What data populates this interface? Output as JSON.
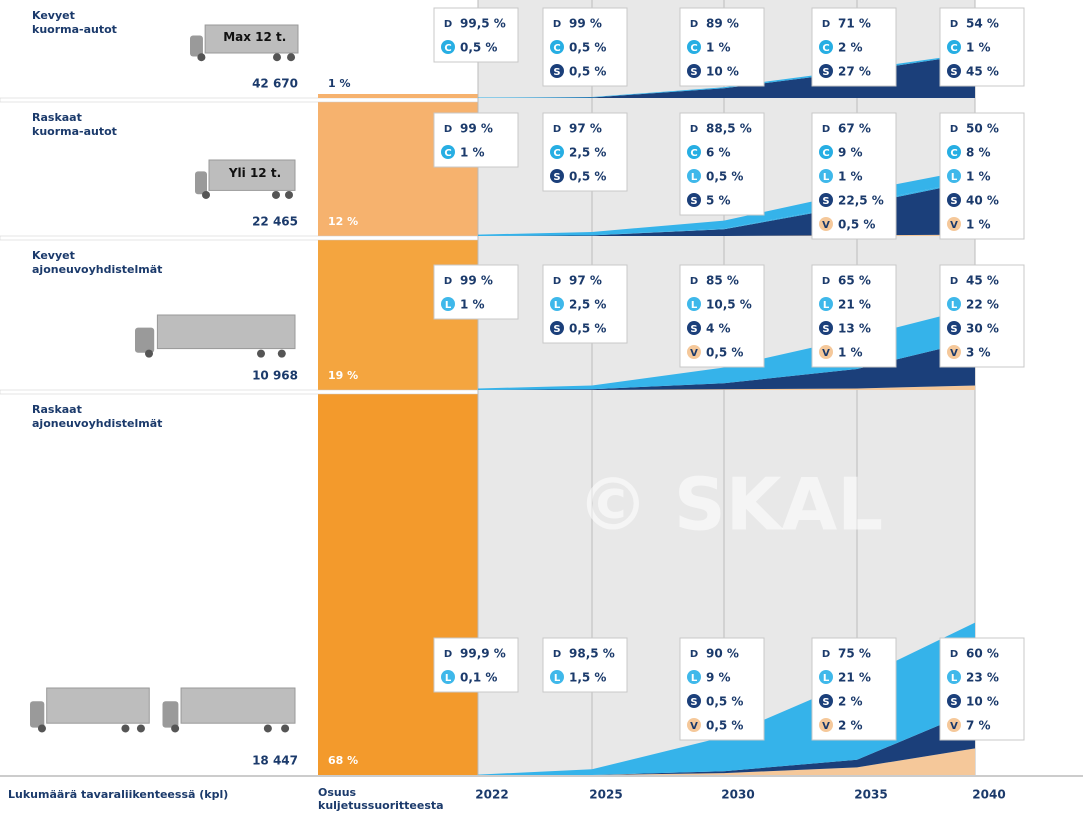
{
  "watermark": "© SKAL",
  "years": [
    "2022",
    "2025",
    "2030",
    "2035",
    "2040"
  ],
  "footer": {
    "count_label": "Lukumäärä tavaraliikenteessä (kpl)",
    "share_label": [
      "Osuus",
      "kuljetussuoritteesta"
    ]
  },
  "rows": [
    {
      "name": [
        "Kevyet",
        "kuorma-autot"
      ],
      "badge": "Max 12 t.",
      "count": "42 670",
      "share": "1 %",
      "boxes": [
        [
          {
            "fuel": "D",
            "value": "99,5 %"
          },
          {
            "fuel": "C",
            "value": "0,5 %"
          }
        ],
        [
          {
            "fuel": "D",
            "value": "99 %"
          },
          {
            "fuel": "C",
            "value": "0,5 %"
          },
          {
            "fuel": "S",
            "value": "0,5 %"
          }
        ],
        [
          {
            "fuel": "D",
            "value": "89 %"
          },
          {
            "fuel": "C",
            "value": "1 %"
          },
          {
            "fuel": "S",
            "value": "10 %"
          }
        ],
        [
          {
            "fuel": "D",
            "value": "71 %"
          },
          {
            "fuel": "C",
            "value": "2 %"
          },
          {
            "fuel": "S",
            "value": "27 %"
          }
        ],
        [
          {
            "fuel": "D",
            "value": "54 %"
          },
          {
            "fuel": "C",
            "value": "1 %"
          },
          {
            "fuel": "S",
            "value": "45 %"
          }
        ]
      ]
    },
    {
      "name": [
        "Raskaat",
        "kuorma-autot"
      ],
      "badge": "Yli 12 t.",
      "count": "22 465",
      "share": "12 %",
      "boxes": [
        [
          {
            "fuel": "D",
            "value": "99 %"
          },
          {
            "fuel": "C",
            "value": "1 %"
          }
        ],
        [
          {
            "fuel": "D",
            "value": "97 %"
          },
          {
            "fuel": "C",
            "value": "2,5 %"
          },
          {
            "fuel": "S",
            "value": "0,5 %"
          }
        ],
        [
          {
            "fuel": "D",
            "value": "88,5 %"
          },
          {
            "fuel": "C",
            "value": "6 %"
          },
          {
            "fuel": "L",
            "value": "0,5 %"
          },
          {
            "fuel": "S",
            "value": "5 %"
          }
        ],
        [
          {
            "fuel": "D",
            "value": "67 %"
          },
          {
            "fuel": "C",
            "value": "9 %"
          },
          {
            "fuel": "L",
            "value": "1 %"
          },
          {
            "fuel": "S",
            "value": "22,5 %"
          },
          {
            "fuel": "V",
            "value": "0,5 %"
          }
        ],
        [
          {
            "fuel": "D",
            "value": "50 %"
          },
          {
            "fuel": "C",
            "value": "8 %"
          },
          {
            "fuel": "L",
            "value": "1 %"
          },
          {
            "fuel": "S",
            "value": "40 %"
          },
          {
            "fuel": "V",
            "value": "1 %"
          }
        ]
      ]
    },
    {
      "name": [
        "Kevyet",
        "ajoneuvoyhdistelmät"
      ],
      "count": "10 968",
      "share": "19 %",
      "boxes": [
        [
          {
            "fuel": "D",
            "value": "99 %"
          },
          {
            "fuel": "L",
            "value": "1 %"
          }
        ],
        [
          {
            "fuel": "D",
            "value": "97 %"
          },
          {
            "fuel": "L",
            "value": "2,5 %"
          },
          {
            "fuel": "S",
            "value": "0,5 %"
          }
        ],
        [
          {
            "fuel": "D",
            "value": "85 %"
          },
          {
            "fuel": "L",
            "value": "10,5 %"
          },
          {
            "fuel": "S",
            "value": "4 %"
          },
          {
            "fuel": "V",
            "value": "0,5 %"
          }
        ],
        [
          {
            "fuel": "D",
            "value": "65 %"
          },
          {
            "fuel": "L",
            "value": "21 %"
          },
          {
            "fuel": "S",
            "value": "13 %"
          },
          {
            "fuel": "V",
            "value": "1 %"
          }
        ],
        [
          {
            "fuel": "D",
            "value": "45 %"
          },
          {
            "fuel": "L",
            "value": "22 %"
          },
          {
            "fuel": "S",
            "value": "30 %"
          },
          {
            "fuel": "V",
            "value": "3 %"
          }
        ]
      ]
    },
    {
      "name": [
        "Raskaat",
        "ajoneuvoyhdistelmät"
      ],
      "count": "18 447",
      "share": "68 %",
      "boxes": [
        [
          {
            "fuel": "D",
            "value": "99,9 %"
          },
          {
            "fuel": "L",
            "value": "0,1 %"
          }
        ],
        [
          {
            "fuel": "D",
            "value": "98,5 %"
          },
          {
            "fuel": "L",
            "value": "1,5 %"
          }
        ],
        [
          {
            "fuel": "D",
            "value": "90 %"
          },
          {
            "fuel": "L",
            "value": "9 %"
          },
          {
            "fuel": "S",
            "value": "0,5 %"
          },
          {
            "fuel": "V",
            "value": "0,5 %"
          }
        ],
        [
          {
            "fuel": "D",
            "value": "75 %"
          },
          {
            "fuel": "L",
            "value": "21 %"
          },
          {
            "fuel": "S",
            "value": "2 %"
          },
          {
            "fuel": "V",
            "value": "2 %"
          }
        ],
        [
          {
            "fuel": "D",
            "value": "60 %"
          },
          {
            "fuel": "L",
            "value": "23 %"
          },
          {
            "fuel": "S",
            "value": "10 %"
          },
          {
            "fuel": "V",
            "value": "7 %"
          }
        ]
      ]
    }
  ]
}
